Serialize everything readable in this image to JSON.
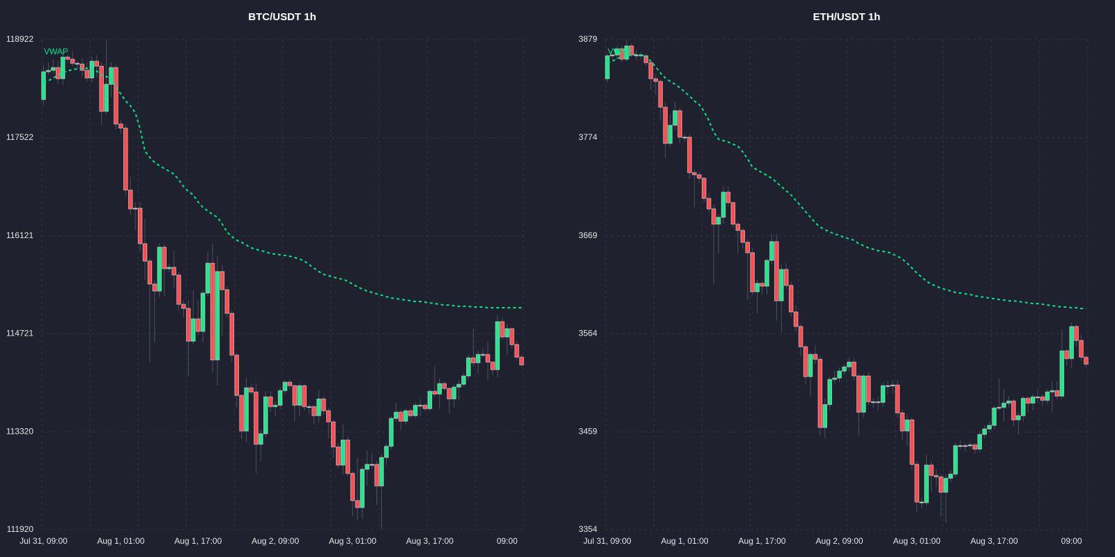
{
  "colors": {
    "background": "#1f222e",
    "up": "#1de98b",
    "down": "#ff4a4f",
    "vwap": "#00e68a",
    "wick": "#4d5261",
    "outline": "#d0d0d0",
    "grid": "#2f3345"
  },
  "chart_data": [
    {
      "type": "candlestick",
      "title": "BTC/USDT 1h",
      "overlay_label": "VWAP",
      "ylim": [
        111920,
        118922
      ],
      "y_ticks": [
        "118922",
        "117522",
        "116121",
        "114721",
        "113320",
        "111920"
      ],
      "x_tick_labels": [
        "Jul 31, 09:00",
        "Aug 1, 01:00",
        "Aug 1, 17:00",
        "Aug 2, 09:00",
        "Aug 3, 01:00",
        "Aug 3, 17:00",
        "09:00"
      ],
      "x_tick_candle_index": [
        0,
        16,
        32,
        48,
        64,
        80,
        96
      ],
      "grid": true,
      "open": [
        118067,
        118464,
        118484,
        118524,
        118365,
        118673,
        118643,
        118584,
        118574,
        118484,
        118375,
        118614,
        118544,
        117898,
        118285,
        118524,
        117718,
        117659,
        116774,
        116505,
        116515,
        116008,
        115759,
        115431,
        115331,
        115958,
        115650,
        115670,
        115560,
        115142,
        115083,
        114615,
        114934,
        114755,
        115302,
        115729,
        114347,
        115610,
        115351,
        115013,
        114416,
        113840,
        113332,
        113949,
        113889,
        113143,
        113293,
        113820,
        113680,
        113700,
        113909,
        114029,
        113979,
        113700,
        113979,
        113680,
        113680,
        113551,
        113790,
        113621,
        113462,
        113104,
        112845,
        113203,
        112726,
        112338,
        112238,
        112785,
        112855,
        112855,
        112547,
        112954,
        113113,
        113511,
        113601,
        113472,
        113621,
        113551,
        113700,
        113700,
        113651,
        113899,
        113860,
        114009,
        113939,
        113790,
        113959,
        113999,
        114118,
        114377,
        114307,
        114426,
        114426,
        114317,
        114208,
        114894,
        114675,
        114794,
        114566,
        114387
      ],
      "high": [
        118560,
        118600,
        118640,
        118620,
        118740,
        118700,
        118760,
        118620,
        118660,
        118600,
        118680,
        118700,
        118600,
        118920,
        118600,
        118560,
        117780,
        117720,
        116960,
        116600,
        116600,
        116356,
        115800,
        115500,
        116008,
        116000,
        115720,
        115908,
        115600,
        115200,
        115200,
        115332,
        115192,
        115350,
        115889,
        116008,
        115829,
        115700,
        115400,
        115050,
        114450,
        113860,
        114088,
        114000,
        114019,
        113350,
        113900,
        113899,
        113760,
        113960,
        114059,
        114060,
        114000,
        114020,
        114000,
        113720,
        113700,
        113919,
        113830,
        113660,
        113480,
        113160,
        113422,
        113250,
        112760,
        112944,
        112830,
        113054,
        113014,
        112900,
        113000,
        113150,
        113550,
        113740,
        113640,
        113660,
        113660,
        113740,
        113790,
        113720,
        113940,
        114247,
        114088,
        114040,
        113960,
        114000,
        114060,
        114160,
        114420,
        114795,
        114480,
        114506,
        114605,
        114260,
        114993,
        114950,
        114864,
        114820,
        114620,
        114420
      ],
      "low": [
        117980,
        118420,
        118440,
        118290,
        118280,
        118600,
        118540,
        118500,
        118400,
        118320,
        118300,
        118380,
        117700,
        117850,
        118100,
        117640,
        117580,
        116700,
        116420,
        116200,
        115900,
        115491,
        114317,
        114595,
        115250,
        115262,
        115600,
        115381,
        115050,
        114960,
        114118,
        114570,
        114700,
        114596,
        115250,
        114168,
        113989,
        114685,
        114950,
        114317,
        113671,
        113223,
        113173,
        113850,
        112726,
        112905,
        113240,
        113600,
        113541,
        113640,
        113850,
        113920,
        113472,
        113551,
        113620,
        113571,
        113422,
        113452,
        113570,
        113223,
        112954,
        112800,
        112706,
        112680,
        112109,
        112050,
        112079,
        112557,
        112800,
        112278,
        111930,
        112845,
        113070,
        113460,
        113343,
        113422,
        113510,
        113510,
        113551,
        113620,
        113620,
        113820,
        113651,
        113900,
        113581,
        113671,
        113770,
        113960,
        114059,
        114250,
        114148,
        114380,
        114059,
        114130,
        114098,
        114640,
        114417,
        114520,
        114360,
        114250
      ],
      "close": [
        118464,
        118484,
        118524,
        118365,
        118673,
        118643,
        118584,
        118574,
        118484,
        118375,
        118614,
        118544,
        117898,
        118285,
        118524,
        117718,
        117659,
        116774,
        116505,
        116515,
        116008,
        115759,
        115431,
        115331,
        115958,
        115650,
        115670,
        115560,
        115142,
        115083,
        114615,
        114934,
        114755,
        115302,
        115729,
        114347,
        115610,
        115351,
        115013,
        114416,
        113840,
        113332,
        113949,
        113889,
        113143,
        113293,
        113820,
        113680,
        113700,
        113909,
        114029,
        113979,
        113700,
        113979,
        113680,
        113680,
        113551,
        113790,
        113621,
        113462,
        113104,
        112845,
        113203,
        112726,
        112338,
        112238,
        112785,
        112855,
        112855,
        112547,
        112954,
        113113,
        113511,
        113601,
        113472,
        113621,
        113551,
        113700,
        113700,
        113651,
        113899,
        113860,
        114009,
        113939,
        113790,
        113959,
        113999,
        114118,
        114377,
        114307,
        114426,
        114426,
        114317,
        114208,
        114894,
        114675,
        114794,
        114566,
        114387,
        114277
      ],
      "vwap": [
        118315,
        118335,
        118375,
        118415,
        118455,
        118474,
        118494,
        118504,
        118514,
        118514,
        118494,
        118474,
        118415,
        118395,
        118375,
        118246,
        118146,
        118047,
        117977,
        117878,
        117649,
        117331,
        117241,
        117171,
        117122,
        117082,
        117042,
        117002,
        116923,
        116823,
        116754,
        116704,
        116605,
        116525,
        116475,
        116426,
        116386,
        116286,
        116177,
        116107,
        116058,
        116028,
        115988,
        115948,
        115928,
        115908,
        115889,
        115869,
        115859,
        115849,
        115839,
        115829,
        115809,
        115789,
        115759,
        115709,
        115660,
        115610,
        115570,
        115550,
        115530,
        115511,
        115501,
        115471,
        115431,
        115391,
        115361,
        115331,
        115312,
        115292,
        115272,
        115252,
        115232,
        115222,
        115212,
        115202,
        115192,
        115182,
        115182,
        115172,
        115162,
        115152,
        115142,
        115132,
        115132,
        115122,
        115113,
        115113,
        115113,
        115103,
        115103,
        115103,
        115093,
        115093,
        115093,
        115093,
        115093,
        115093,
        115093,
        115093
      ]
    },
    {
      "type": "candlestick",
      "title": "ETH/USDT 1h",
      "overlay_label": "VWAP",
      "ylim": [
        3354,
        3879
      ],
      "y_ticks": [
        "3879",
        "3774",
        "3669",
        "3564",
        "3459",
        "3354"
      ],
      "x_tick_labels": [
        "Jul 31, 09:00",
        "Aug 1, 01:00",
        "Aug 1, 17:00",
        "Aug 2, 09:00",
        "Aug 3, 01:00",
        "Aug 3, 17:00",
        "09:00"
      ],
      "x_tick_candle_index": [
        0,
        16,
        32,
        48,
        64,
        80,
        96
      ],
      "grid": true,
      "open": [
        3837.2,
        3861.8,
        3862.6,
        3869.3,
        3858.1,
        3872.3,
        3862.6,
        3862.6,
        3861.8,
        3854.4,
        3837.2,
        3834.3,
        3806.7,
        3767.9,
        3787.3,
        3802.9,
        3774.6,
        3774.6,
        3736.6,
        3734.3,
        3730.6,
        3709.0,
        3697.8,
        3681.4,
        3688.8,
        3715.7,
        3704.5,
        3681.4,
        3674.7,
        3662.0,
        3650.8,
        3609.0,
        3618.0,
        3615.0,
        3642.6,
        3662.7,
        3599.3,
        3632.9,
        3615.8,
        3587.4,
        3571.8,
        3550.1,
        3518.1,
        3541.9,
        3536.7,
        3463.6,
        3488.2,
        3515.1,
        3516.6,
        3524.0,
        3528.5,
        3533.7,
        3518.8,
        3480.0,
        3518.8,
        3491.2,
        3491.2,
        3490.5,
        3508.4,
        3508.4,
        3509.1,
        3479.3,
        3459.9,
        3471.8,
        3424.1,
        3383.8,
        3383.1,
        3423.4,
        3412.2,
        3410.7,
        3394.3,
        3409.2,
        3413.7,
        3444.2,
        3444.2,
        3444.2,
        3445.0,
        3440.5,
        3456.2,
        3462.1,
        3465.9,
        3484.5,
        3485.2,
        3489.7,
        3492.0,
        3471.8,
        3476.3,
        3494.9,
        3489.7,
        3496.4,
        3496.4,
        3492.7,
        3501.7,
        3503.1,
        3497.2,
        3545.7,
        3537.4,
        3571.8,
        3556.8,
        3538.9
      ],
      "high": [
        3864,
        3866,
        3872,
        3872,
        3879,
        3875,
        3868,
        3866,
        3864,
        3856,
        3842,
        3836,
        3812,
        3799,
        3813,
        3806,
        3778,
        3778,
        3740,
        3738,
        3732,
        3715,
        3702,
        3692,
        3722,
        3722,
        3706,
        3684,
        3677,
        3665,
        3656,
        3622,
        3621,
        3645,
        3671,
        3671,
        3638,
        3640,
        3620,
        3595,
        3575,
        3552,
        3545,
        3552,
        3541,
        3495,
        3518,
        3525,
        3528,
        3531,
        3539,
        3537,
        3522,
        3521,
        3523,
        3495,
        3496,
        3512,
        3514,
        3514,
        3514,
        3483,
        3478,
        3474,
        3428,
        3388,
        3435,
        3428,
        3419,
        3414,
        3413,
        3418,
        3447,
        3450,
        3447,
        3448,
        3447,
        3460,
        3466,
        3470,
        3487,
        3516,
        3505,
        3497,
        3494,
        3480,
        3497,
        3497,
        3500,
        3505,
        3499,
        3505,
        3513,
        3513,
        3568,
        3548,
        3576,
        3574,
        3562,
        3541
      ],
      "low": [
        3833,
        3858,
        3858,
        3855,
        3856,
        3860,
        3857,
        3858,
        3851,
        3825,
        3820,
        3792,
        3752,
        3764,
        3782,
        3768,
        3770,
        3730,
        3700,
        3725,
        3705,
        3694,
        3617,
        3650,
        3682,
        3700,
        3678,
        3650,
        3655,
        3600,
        3605,
        3586,
        3606,
        3606,
        3638,
        3578,
        3565,
        3612,
        3582,
        3566,
        3540,
        3510,
        3498,
        3532,
        3455,
        3452,
        3482,
        3510,
        3512,
        3520,
        3524,
        3514,
        3455,
        3474,
        3487,
        3485,
        3482,
        3486,
        3500,
        3500,
        3474,
        3450,
        3444,
        3418,
        3373,
        3377,
        3380,
        3395,
        3400,
        3368,
        3362,
        3405,
        3410,
        3440,
        3438,
        3441,
        3436,
        3437,
        3452,
        3458,
        3462,
        3482,
        3470,
        3485,
        3465,
        3456,
        3470,
        3480,
        3482,
        3490,
        3487,
        3489,
        3480,
        3494,
        3494,
        3530,
        3527,
        3550,
        3535,
        3528
      ],
      "close": [
        3861.8,
        3862.6,
        3869.3,
        3858.1,
        3872.3,
        3862.6,
        3862.6,
        3861.8,
        3854.4,
        3837.2,
        3834.3,
        3806.7,
        3767.9,
        3787.3,
        3802.9,
        3774.6,
        3774.6,
        3736.6,
        3734.3,
        3730.6,
        3709.0,
        3697.8,
        3681.4,
        3688.8,
        3715.7,
        3704.5,
        3681.4,
        3674.7,
        3662.0,
        3650.8,
        3609.0,
        3618.0,
        3615.0,
        3642.6,
        3662.7,
        3599.3,
        3632.9,
        3615.8,
        3587.4,
        3571.8,
        3550.1,
        3518.1,
        3541.9,
        3536.7,
        3463.6,
        3488.2,
        3515.1,
        3516.6,
        3524.0,
        3528.5,
        3533.7,
        3518.8,
        3480.0,
        3518.8,
        3491.2,
        3491.2,
        3490.5,
        3508.4,
        3508.4,
        3509.1,
        3479.3,
        3459.9,
        3471.8,
        3424.1,
        3383.8,
        3383.1,
        3423.4,
        3412.2,
        3410.7,
        3394.3,
        3409.2,
        3413.7,
        3444.2,
        3444.2,
        3444.2,
        3445.0,
        3440.5,
        3456.2,
        3462.1,
        3465.9,
        3484.5,
        3485.2,
        3489.7,
        3492.0,
        3471.8,
        3476.3,
        3494.9,
        3489.7,
        3496.4,
        3496.4,
        3492.7,
        3501.7,
        3503.1,
        3497.2,
        3545.7,
        3537.4,
        3571.8,
        3556.8,
        3538.9,
        3531.5
      ],
      "vwap": [
        3854.4,
        3855.9,
        3858.9,
        3860.4,
        3861.8,
        3862.6,
        3863.3,
        3862.6,
        3860.4,
        3855.9,
        3849.9,
        3843.2,
        3838.0,
        3834.3,
        3831.3,
        3827.5,
        3823.1,
        3818.6,
        3813.4,
        3809.6,
        3802.2,
        3792.5,
        3779.8,
        3772.4,
        3770.9,
        3769.4,
        3767.1,
        3764.9,
        3758.9,
        3751.5,
        3742.5,
        3739.5,
        3736.6,
        3733.6,
        3730.6,
        3726.1,
        3721.6,
        3717.2,
        3712.7,
        3706.7,
        3700.8,
        3694.8,
        3688.8,
        3682.9,
        3678.4,
        3675.4,
        3673.2,
        3670.9,
        3669.4,
        3667.2,
        3665.7,
        3664.2,
        3660.5,
        3658.3,
        3656.0,
        3654.5,
        3653.0,
        3652.3,
        3651.5,
        3649.3,
        3647.1,
        3644.1,
        3639.6,
        3634.4,
        3629.2,
        3624.7,
        3620.2,
        3617.2,
        3615.0,
        3612.8,
        3611.3,
        3609.8,
        3608.3,
        3607.6,
        3606.8,
        3606.1,
        3604.6,
        3603.8,
        3603.1,
        3602.3,
        3601.6,
        3600.8,
        3600.1,
        3599.3,
        3599.3,
        3598.6,
        3597.9,
        3597.1,
        3596.4,
        3596.4,
        3595.6,
        3594.9,
        3594.1,
        3593.4,
        3592.6,
        3592.6,
        3591.9,
        3591.9,
        3591.1,
        3591.1
      ]
    }
  ]
}
